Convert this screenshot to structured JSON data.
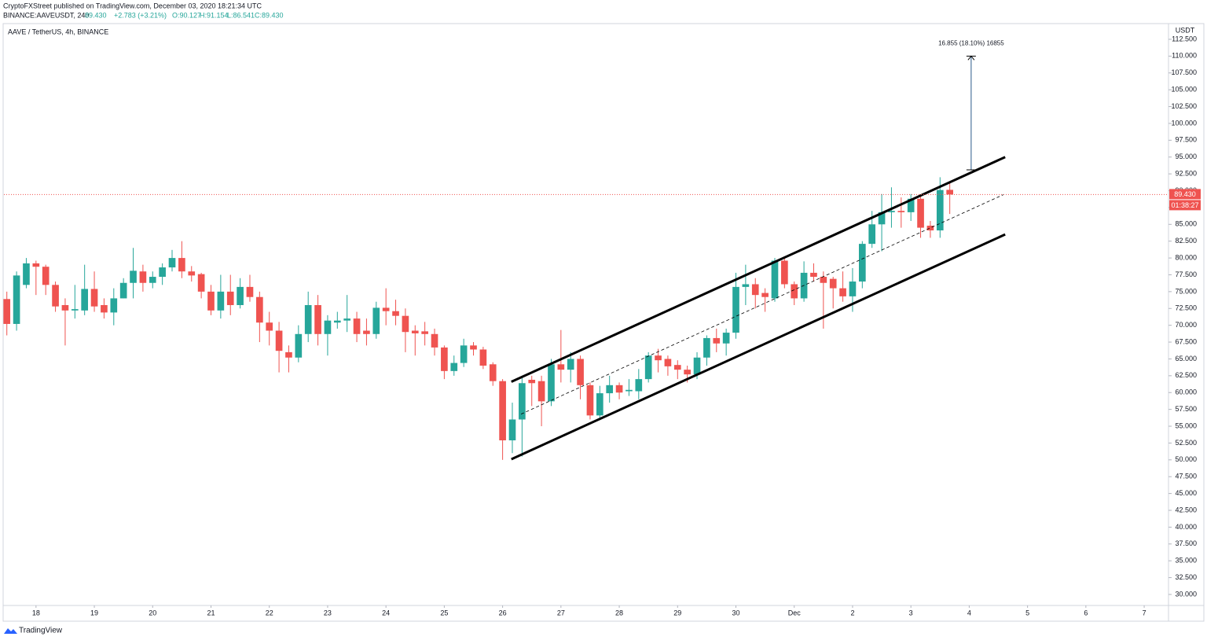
{
  "header": {
    "publisher": "CryptoFXStreet published on TradingView.com, December 03, 2020 18:21:34 UTC",
    "symbol": "BINANCE:AAVEUSDT, 240",
    "price": "89.430",
    "change": "+2.783 (+3.21%)",
    "ohlc": [
      "O:90.127",
      "H:91.154",
      "L:86.541",
      "C:89.430"
    ]
  },
  "chart_data": {
    "type": "candlestick",
    "title": "AAVE / TetherUS, 4h, BINANCE",
    "y_unit": "USDT",
    "up_color": "#26a69a",
    "down_color": "#ef5350",
    "open": [
      73.9,
      70.2,
      76,
      79.2,
      78.7,
      76,
      73,
      72.2,
      72.2,
      75.4,
      73,
      71.9,
      74,
      76.3,
      78,
      76.3,
      77.2,
      78.6,
      80,
      78,
      77.6,
      75,
      72.2,
      75,
      73,
      75.7,
      74.2,
      70.4,
      69.2,
      66,
      65.2,
      68.7,
      73,
      68.7,
      70.4,
      70.7,
      71,
      69.2,
      68.7,
      72.6,
      72.1,
      71.4,
      69.2,
      69.1,
      68.7,
      66.7,
      63.2,
      64.4,
      67,
      66.4,
      64.2,
      61.7,
      52.9,
      56,
      61.9,
      61.7,
      58.7,
      64.2,
      63.4,
      65,
      61.1,
      56.6,
      59.9,
      61.1,
      60.2,
      60.2,
      62,
      65.5,
      65,
      64.1,
      63.4,
      62.7,
      65.2,
      68.1,
      67.3,
      68.9,
      75.7,
      76.1,
      74.8,
      74,
      79.6,
      76.1,
      74,
      77.8,
      77.2,
      76.9,
      75.5,
      74.3,
      76.5,
      82.1,
      85,
      86.8,
      87,
      86.8,
      88.8,
      84.8,
      84.1,
      90.127
    ],
    "high": [
      75,
      78,
      80,
      79.6,
      79,
      76.5,
      74,
      76,
      79,
      78,
      74,
      75.5,
      77,
      81.5,
      79,
      78,
      79.2,
      81.2,
      82.5,
      78.8,
      77.8,
      76,
      77.5,
      77.5,
      77,
      77.5,
      75,
      72,
      70.5,
      67,
      70,
      75,
      74.5,
      71.5,
      72,
      74.5,
      72,
      71,
      73.5,
      75.5,
      73.8,
      72.5,
      70,
      70.5,
      69.5,
      67,
      65.5,
      68,
      67.5,
      66.8,
      64.5,
      62,
      58.5,
      62.5,
      62.5,
      62.5,
      65,
      69.3,
      66,
      65.5,
      61.5,
      61,
      62.5,
      61.5,
      62,
      63.5,
      66,
      66.5,
      65.5,
      64.8,
      64,
      66,
      68.5,
      69.5,
      69.5,
      77.8,
      79,
      77,
      75.5,
      80,
      80.2,
      76.5,
      79.5,
      79.2,
      78,
      77.2,
      78,
      78.5,
      82.5,
      87,
      89.5,
      90.5,
      89,
      89.5,
      89.3,
      85.5,
      92,
      91.154
    ],
    "low": [
      68.5,
      69.2,
      75.5,
      74.5,
      74.5,
      72,
      67,
      71,
      71.5,
      72,
      71,
      70,
      74,
      74,
      75,
      75.5,
      76,
      78,
      77,
      76.5,
      74,
      71.5,
      71,
      71.5,
      72.5,
      73.5,
      67.5,
      67,
      63,
      63,
      64.5,
      67.5,
      67,
      65.5,
      69.5,
      69,
      67.5,
      67,
      68,
      70,
      70,
      66,
      65.5,
      67,
      65.5,
      62,
      62.5,
      63.8,
      65.5,
      63.5,
      61,
      50,
      51,
      50.5,
      58,
      55,
      58,
      61.5,
      61.5,
      59,
      56,
      56.2,
      58.5,
      59,
      59.5,
      59,
      61.5,
      63,
      62.5,
      62,
      61.5,
      62,
      64,
      66,
      65.5,
      68,
      73,
      72.5,
      72,
      73.5,
      75.5,
      73,
      73.5,
      76.5,
      69.5,
      72.5,
      73.5,
      72,
      75.5,
      81.5,
      81,
      84.5,
      84.5,
      85.5,
      83,
      83,
      83,
      86.541
    ],
    "close": [
      70.2,
      77.4,
      79.2,
      78.7,
      76,
      72.8,
      72.2,
      72.4,
      75.4,
      72.8,
      71.9,
      74,
      76.3,
      78.1,
      76.3,
      77.2,
      78.6,
      80,
      78,
      77.4,
      75,
      72.2,
      75,
      73,
      75.7,
      74.2,
      70.4,
      69.2,
      66.2,
      65.2,
      68.7,
      73,
      68.7,
      70.7,
      70.7,
      71,
      68.7,
      68.7,
      72.6,
      72.1,
      71.4,
      69,
      68.8,
      68.7,
      66.7,
      63.2,
      64.4,
      67,
      66.4,
      64,
      61.7,
      52.9,
      56,
      61.4,
      61.4,
      58.7,
      64.2,
      63.4,
      65,
      61.1,
      56.6,
      59.9,
      61.1,
      60,
      60.4,
      62,
      65.5,
      64.8,
      63.9,
      63.4,
      62.7,
      65.2,
      68.1,
      67.3,
      68.9,
      75.7,
      76.1,
      74.5,
      74.2,
      79.6,
      76.1,
      74,
      77.8,
      77.2,
      76.3,
      75.5,
      74.3,
      76.5,
      82.1,
      85,
      86.8,
      87,
      86.8,
      88.8,
      84.5,
      84.1,
      90.1,
      89.43
    ],
    "last_price": {
      "value": 89.43,
      "label": "89.430"
    },
    "countdown": "01:38:27",
    "channel": [
      {
        "x": [
          51.9,
          102.7
        ],
        "y": [
          61.6,
          95.0
        ],
        "style": "solid"
      },
      {
        "x": [
          51.9,
          102.7
        ],
        "y": [
          50.1,
          83.5
        ],
        "style": "solid"
      },
      {
        "x": [
          52.9,
          102.5
        ],
        "y": [
          56.8,
          89.4
        ],
        "style": "dashed"
      }
    ],
    "measure": {
      "x": 99.2,
      "y": [
        93.1,
        110.0
      ],
      "label": "16.855 (18.10%) 16855"
    },
    "xlim": [
      -0.3,
      119.5
    ],
    "ylim": [
      28.36,
      114.6
    ],
    "xticks": [
      {
        "value": 3,
        "label": "18"
      },
      {
        "value": 9,
        "label": "19"
      },
      {
        "value": 15,
        "label": "20"
      },
      {
        "value": 21,
        "label": "21"
      },
      {
        "value": 27,
        "label": "22"
      },
      {
        "value": 33,
        "label": "23"
      },
      {
        "value": 39,
        "label": "24"
      },
      {
        "value": 45,
        "label": "25"
      },
      {
        "value": 51,
        "label": "26"
      },
      {
        "value": 57,
        "label": "27"
      },
      {
        "value": 63,
        "label": "28"
      },
      {
        "value": 69,
        "label": "29"
      },
      {
        "value": 75,
        "label": "30"
      },
      {
        "value": 81,
        "label": "Dec"
      },
      {
        "value": 87,
        "label": "2"
      },
      {
        "value": 93,
        "label": "3"
      },
      {
        "value": 99,
        "label": "4"
      },
      {
        "value": 105,
        "label": "5"
      },
      {
        "value": 111,
        "label": "6"
      },
      {
        "value": 117,
        "label": "7"
      }
    ],
    "yticks": [
      {
        "value": 30,
        "label": "30.000"
      },
      {
        "value": 32.5,
        "label": "32.500"
      },
      {
        "value": 35,
        "label": "35.000"
      },
      {
        "value": 37.5,
        "label": "37.500"
      },
      {
        "value": 40,
        "label": "40.000"
      },
      {
        "value": 42.5,
        "label": "42.500"
      },
      {
        "value": 45,
        "label": "45.000"
      },
      {
        "value": 47.5,
        "label": "47.500"
      },
      {
        "value": 50,
        "label": "50.000"
      },
      {
        "value": 52.5,
        "label": "52.500"
      },
      {
        "value": 55,
        "label": "55.000"
      },
      {
        "value": 57.5,
        "label": "57.500"
      },
      {
        "value": 60,
        "label": "60.000"
      },
      {
        "value": 62.5,
        "label": "62.500"
      },
      {
        "value": 65,
        "label": "65.000"
      },
      {
        "value": 67.5,
        "label": "67.500"
      },
      {
        "value": 70,
        "label": "70.000"
      },
      {
        "value": 72.5,
        "label": "72.500"
      },
      {
        "value": 75,
        "label": "75.000"
      },
      {
        "value": 77.5,
        "label": "77.500"
      },
      {
        "value": 80,
        "label": "80.000"
      },
      {
        "value": 82.5,
        "label": "82.500"
      },
      {
        "value": 85,
        "label": "85.000"
      },
      {
        "value": 87.5,
        "label": "87.500"
      },
      {
        "value": 90,
        "label": "90.000"
      },
      {
        "value": 92.5,
        "label": "92.500"
      },
      {
        "value": 95,
        "label": "95.000"
      },
      {
        "value": 97.5,
        "label": "97.500"
      },
      {
        "value": 100,
        "label": "100.000"
      },
      {
        "value": 102.5,
        "label": "102.500"
      },
      {
        "value": 105,
        "label": "105.000"
      },
      {
        "value": 107.5,
        "label": "107.500"
      },
      {
        "value": 110,
        "label": "110.000"
      },
      {
        "value": 112.5,
        "label": "112.500"
      }
    ]
  },
  "footer": {
    "brand": "TradingView"
  }
}
